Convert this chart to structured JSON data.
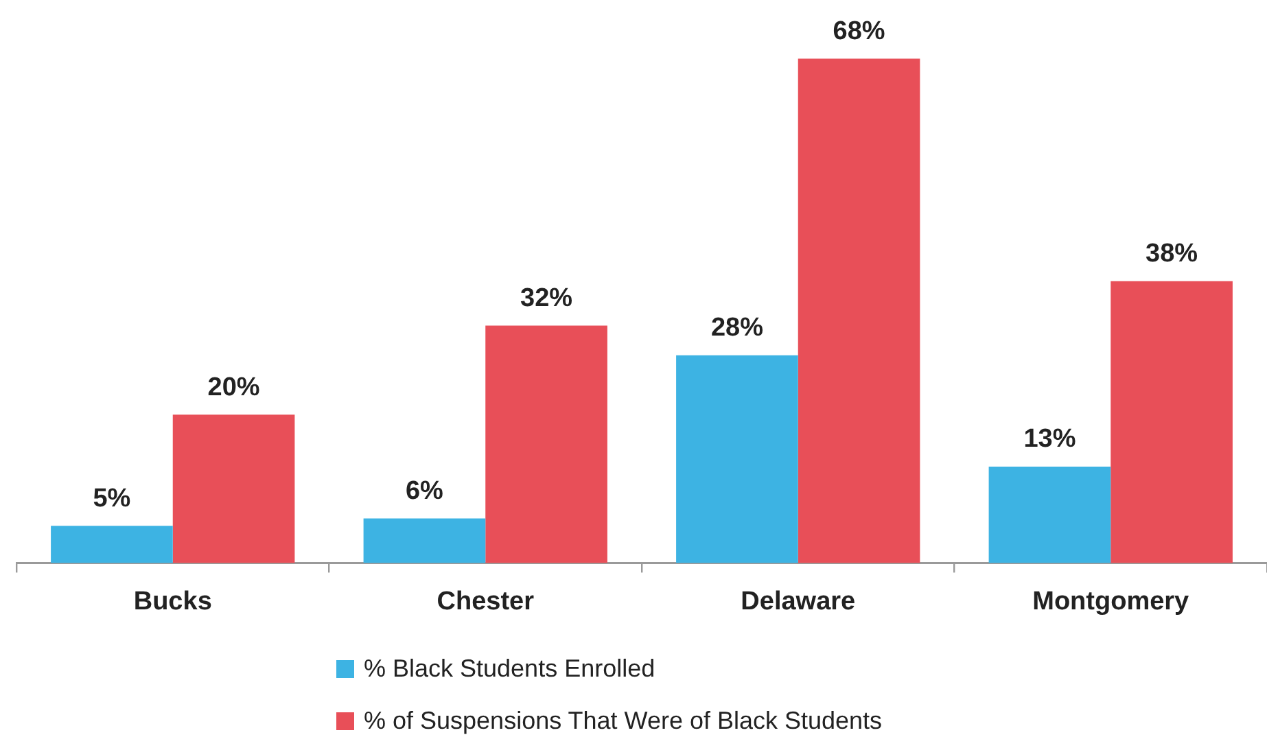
{
  "chart_data": {
    "type": "bar",
    "categories": [
      "Bucks",
      "Chester",
      "Delaware",
      "Montgomery"
    ],
    "series": [
      {
        "name": "% Black Students Enrolled",
        "color": "#3db3e3",
        "values": [
          5,
          6,
          28,
          13
        ],
        "value_labels": [
          "5%",
          "6%",
          "28%",
          "13%"
        ]
      },
      {
        "name": "% of Suspensions That Were of Black Students",
        "color": "#e84f58",
        "values": [
          20,
          32,
          68,
          38
        ],
        "value_labels": [
          "20%",
          "32%",
          "68%",
          "38%"
        ]
      }
    ],
    "legend": "bottom",
    "grid": false
  }
}
